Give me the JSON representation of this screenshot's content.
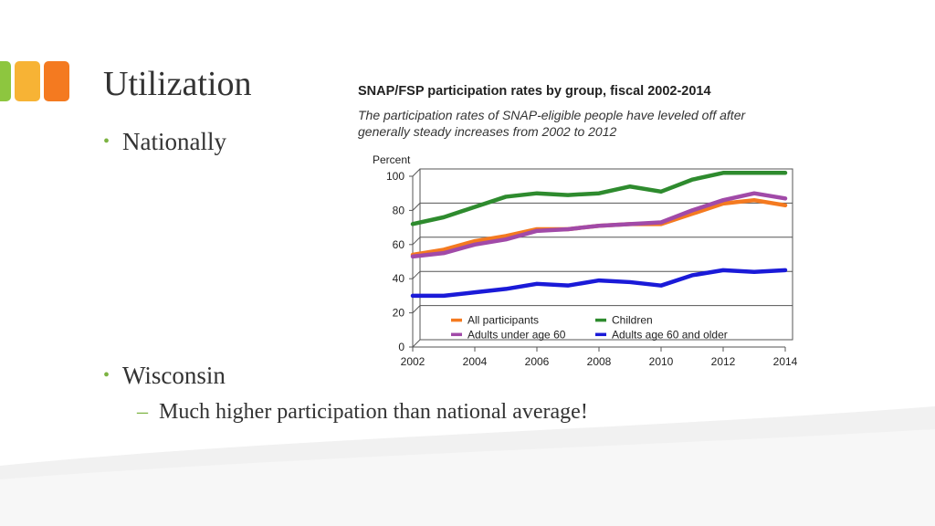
{
  "slide": {
    "title": "Utilization",
    "bullets": [
      "Nationally",
      "Wisconsin"
    ],
    "sub_bullet": "Much higher participation than national average!",
    "bullet_symbol": "•",
    "dash_symbol": "–",
    "block_colors": [
      "#8dc63f",
      "#f7b335",
      "#f47a20"
    ]
  },
  "chart_data": {
    "type": "line",
    "title": "SNAP/FSP participation rates by group, fiscal 2002-2014",
    "subtitle": "The participation rates of SNAP-eligible people have leveled off after generally steady increases from 2002 to 2012",
    "ylabel": "Percent",
    "xlabel": "",
    "ylim": [
      0,
      100
    ],
    "yticks": [
      0,
      20,
      40,
      60,
      80,
      100
    ],
    "x": [
      2002,
      2003,
      2004,
      2005,
      2006,
      2007,
      2008,
      2009,
      2010,
      2011,
      2012,
      2013,
      2014
    ],
    "xtick_labels": [
      "2002",
      "2004",
      "2006",
      "2008",
      "2010",
      "2012",
      "2014"
    ],
    "legend_position": "lower-inside",
    "series": [
      {
        "name": "All participants",
        "color": "#f47a20",
        "values": [
          54,
          57,
          62,
          65,
          69,
          69,
          71,
          72,
          72,
          78,
          84,
          86,
          83
        ]
      },
      {
        "name": "Children",
        "color": "#2e8b2e",
        "values": [
          72,
          76,
          82,
          88,
          90,
          89,
          90,
          94,
          91,
          98,
          102,
          102,
          102
        ]
      },
      {
        "name": "Adults under age 60",
        "color": "#a14aa8",
        "values": [
          53,
          55,
          60,
          63,
          68,
          69,
          71,
          72,
          73,
          80,
          86,
          90,
          87
        ]
      },
      {
        "name": "Adults age 60 and older",
        "color": "#1a1ad8",
        "values": [
          30,
          30,
          32,
          34,
          37,
          36,
          39,
          38,
          36,
          42,
          45,
          44,
          45
        ]
      }
    ],
    "legend_order": [
      0,
      1,
      2,
      3
    ]
  }
}
